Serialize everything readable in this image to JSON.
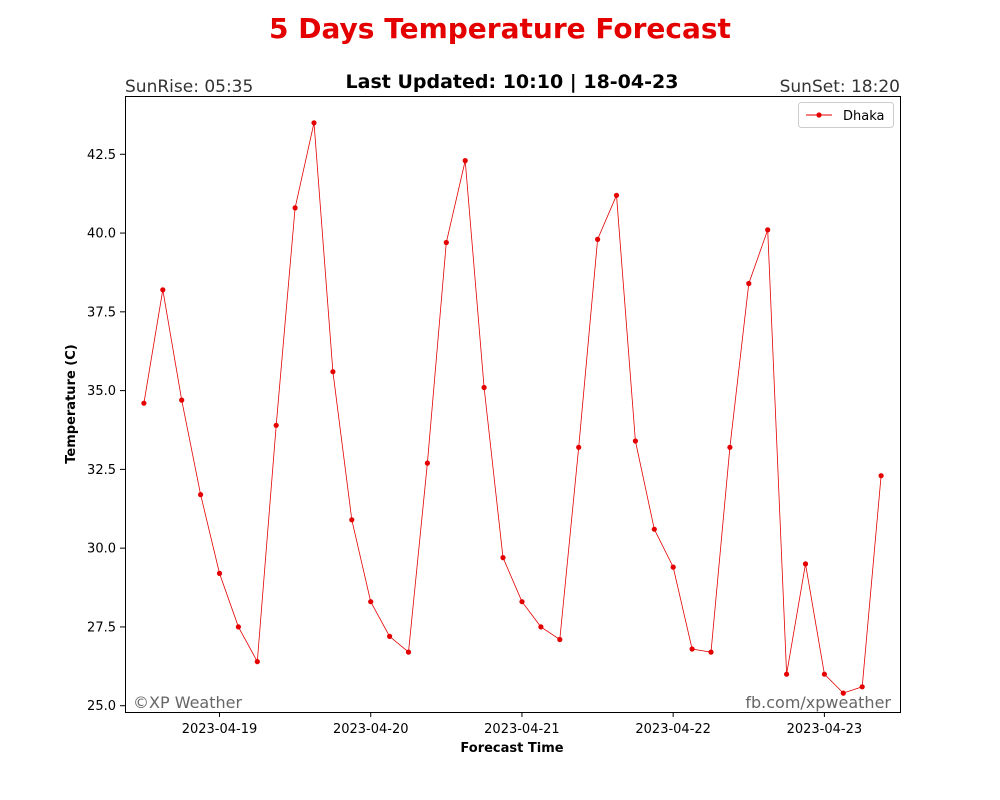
{
  "header": {
    "title": "5 Days Temperature Forecast",
    "title_color": "#e50000",
    "last_updated": "Last Updated: 10:10 | 18-04-23",
    "sunrise": "SunRise: 05:35",
    "sunset": "SunSet: 18:20"
  },
  "watermark": {
    "left": "©XP Weather",
    "right": "fb.com/xpweather"
  },
  "chart_data": {
    "type": "line",
    "xlabel": "Forecast Time",
    "ylabel": "Temperature (C)",
    "series_color": "#e50000",
    "legend_position": "top-right",
    "grid": false,
    "x_tick_labels": [
      "2023-04-19",
      "2023-04-20",
      "2023-04-21",
      "2023-04-22",
      "2023-04-23"
    ],
    "y_tick_labels": [
      "25.0",
      "27.5",
      "30.0",
      "32.5",
      "35.0",
      "37.5",
      "40.0",
      "42.5"
    ],
    "x_range": [
      "2023-04-18 09:00",
      "2023-04-23 12:00"
    ],
    "ylim": [
      24.8,
      44.35
    ],
    "series": [
      {
        "name": "Dhaka",
        "x": [
          "2023-04-18 12:00",
          "2023-04-18 15:00",
          "2023-04-18 18:00",
          "2023-04-18 21:00",
          "2023-04-19 00:00",
          "2023-04-19 03:00",
          "2023-04-19 06:00",
          "2023-04-19 09:00",
          "2023-04-19 12:00",
          "2023-04-19 15:00",
          "2023-04-19 18:00",
          "2023-04-19 21:00",
          "2023-04-20 00:00",
          "2023-04-20 03:00",
          "2023-04-20 06:00",
          "2023-04-20 09:00",
          "2023-04-20 12:00",
          "2023-04-20 15:00",
          "2023-04-20 18:00",
          "2023-04-20 21:00",
          "2023-04-21 00:00",
          "2023-04-21 03:00",
          "2023-04-21 06:00",
          "2023-04-21 09:00",
          "2023-04-21 12:00",
          "2023-04-21 15:00",
          "2023-04-21 18:00",
          "2023-04-21 21:00",
          "2023-04-22 00:00",
          "2023-04-22 03:00",
          "2023-04-22 06:00",
          "2023-04-22 09:00",
          "2023-04-22 12:00",
          "2023-04-22 15:00",
          "2023-04-22 18:00",
          "2023-04-22 21:00",
          "2023-04-23 00:00",
          "2023-04-23 03:00",
          "2023-04-23 06:00",
          "2023-04-23 09:00"
        ],
        "values": [
          34.6,
          38.2,
          34.7,
          31.7,
          29.2,
          27.5,
          26.4,
          33.9,
          40.8,
          43.5,
          35.6,
          30.9,
          28.3,
          27.2,
          26.7,
          32.7,
          39.7,
          42.3,
          35.1,
          29.7,
          28.3,
          27.5,
          27.1,
          33.2,
          39.8,
          41.2,
          33.4,
          30.6,
          29.4,
          26.8,
          26.7,
          33.2,
          38.4,
          40.1,
          26.0,
          29.5,
          26.0,
          25.4,
          25.6,
          32.3
        ]
      }
    ]
  }
}
